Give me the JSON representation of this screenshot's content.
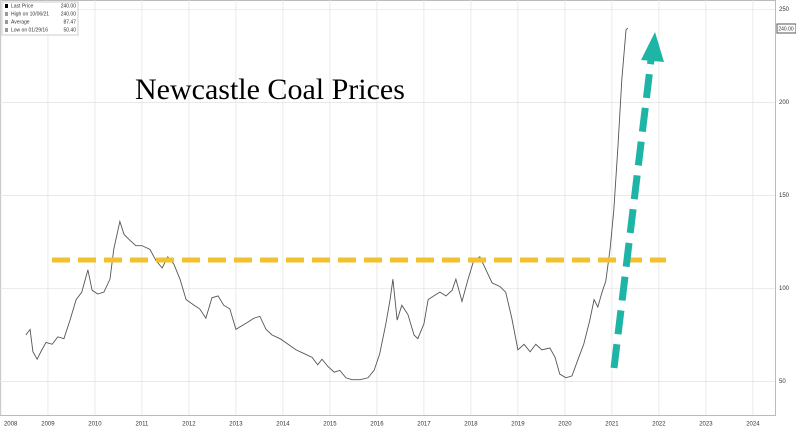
{
  "chart_data": {
    "type": "line",
    "title": "Newcastle Coal Prices",
    "stats": {
      "labels": [
        "Last Price",
        "High on 10/06/21",
        "Average",
        "Low on 01/29/16"
      ],
      "values": [
        240,
        240,
        87.47,
        50.4
      ],
      "value_labels": [
        "240.00",
        "240.00",
        "87.47",
        "50.40"
      ]
    },
    "series": [
      {
        "color": "#555555",
        "x": [
          2008.53,
          2008.62,
          2008.68,
          2008.77,
          2008.87,
          2008.96,
          2009.09,
          2009.21,
          2009.34,
          2009.47,
          2009.6,
          2009.72,
          2009.85,
          2009.94,
          2010.06,
          2010.19,
          2010.32,
          2010.4,
          2010.53,
          2010.62,
          2010.74,
          2010.87,
          2011.0,
          2011.17,
          2011.3,
          2011.43,
          2011.55,
          2011.68,
          2011.81,
          2011.94,
          2012.11,
          2012.23,
          2012.36,
          2012.49,
          2012.62,
          2012.74,
          2012.87,
          2013.0,
          2013.13,
          2013.26,
          2013.38,
          2013.51,
          2013.64,
          2013.77,
          2013.94,
          2014.11,
          2014.28,
          2014.45,
          2014.62,
          2014.74,
          2014.83,
          2014.96,
          2015.09,
          2015.21,
          2015.34,
          2015.47,
          2015.64,
          2015.81,
          2015.94,
          2016.06,
          2016.19,
          2016.28,
          2016.34,
          2016.43,
          2016.53,
          2016.66,
          2016.79,
          2016.87,
          2017.0,
          2017.09,
          2017.21,
          2017.34,
          2017.47,
          2017.6,
          2017.68,
          2017.81,
          2017.94,
          2018.06,
          2018.19,
          2018.32,
          2018.45,
          2018.62,
          2018.74,
          2018.87,
          2019.0,
          2019.13,
          2019.26,
          2019.38,
          2019.51,
          2019.68,
          2019.79,
          2019.89,
          2020.02,
          2020.15,
          2020.28,
          2020.4,
          2020.53,
          2020.62,
          2020.7,
          2020.79,
          2020.87,
          2020.96,
          2021.04,
          2021.13,
          2021.21,
          2021.3,
          2021.34
        ],
        "values": [
          75,
          78,
          66,
          62,
          67,
          71,
          70,
          74,
          73,
          83,
          94,
          98,
          110,
          99,
          97,
          98,
          105,
          121,
          136,
          129,
          126,
          123,
          123,
          121,
          115,
          111,
          117,
          113,
          105,
          94,
          91,
          89,
          84,
          95,
          96,
          91,
          89,
          78,
          80,
          82,
          84,
          85,
          78,
          75,
          73,
          70,
          67,
          65,
          63,
          59,
          62,
          58,
          55,
          56,
          52,
          51,
          51,
          52,
          56,
          65,
          81,
          94,
          105,
          83,
          91,
          86,
          75,
          73,
          81,
          94,
          96,
          98,
          96,
          99,
          105,
          93,
          105,
          115,
          117,
          110,
          103,
          101,
          98,
          84,
          67,
          70,
          66,
          70,
          67,
          68,
          63,
          54,
          52,
          53,
          62,
          70,
          83,
          94,
          90,
          98,
          104,
          121,
          142,
          177,
          212,
          239,
          240
        ]
      }
    ],
    "xlim": [
      2007.98,
      2024.47
    ],
    "xticks": [
      2008,
      2009,
      2010,
      2011,
      2012,
      2013,
      2014,
      2015,
      2016,
      2017,
      2018,
      2019,
      2020,
      2021,
      2022,
      2023,
      2024
    ],
    "ylim": [
      32,
      255
    ],
    "yticks": [
      50,
      100,
      150,
      200,
      250
    ],
    "grid": true
  }
}
